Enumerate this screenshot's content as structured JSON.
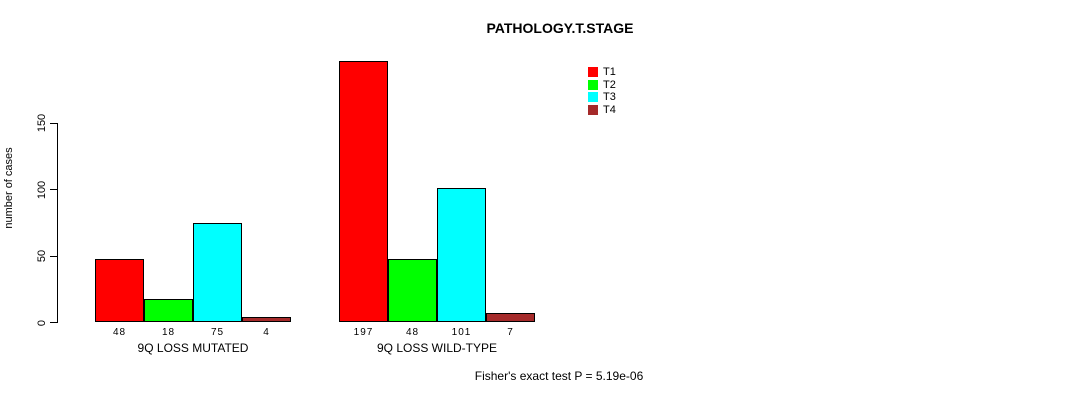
{
  "chart_data": {
    "type": "bar",
    "title": "PATHOLOGY.T.STAGE",
    "ylabel": "number of cases",
    "xlabel": "",
    "categories": [
      "9Q LOSS MUTATED",
      "9Q LOSS WILD-TYPE"
    ],
    "series": [
      {
        "name": "T1",
        "color": "#FF0000",
        "values": [
          48,
          197
        ]
      },
      {
        "name": "T2",
        "color": "#00FF00",
        "values": [
          18,
          48
        ]
      },
      {
        "name": "T3",
        "color": "#00FFFF",
        "values": [
          75,
          101
        ]
      },
      {
        "name": "T4",
        "color": "#A52A2A",
        "values": [
          4,
          7
        ]
      }
    ],
    "bar_value_labels": [
      [
        "48",
        "18",
        "75",
        "4"
      ],
      [
        "197",
        "48",
        "101",
        "7"
      ]
    ],
    "yticks": [
      "0",
      "50",
      "100",
      "150"
    ],
    "ylim": [
      0,
      197
    ],
    "grid": false,
    "legend_position": "top-right",
    "legend_entries": [
      "T1",
      "T2",
      "T3",
      "T4"
    ],
    "annotation": "Fisher's exact test P = 5.19e-06"
  }
}
